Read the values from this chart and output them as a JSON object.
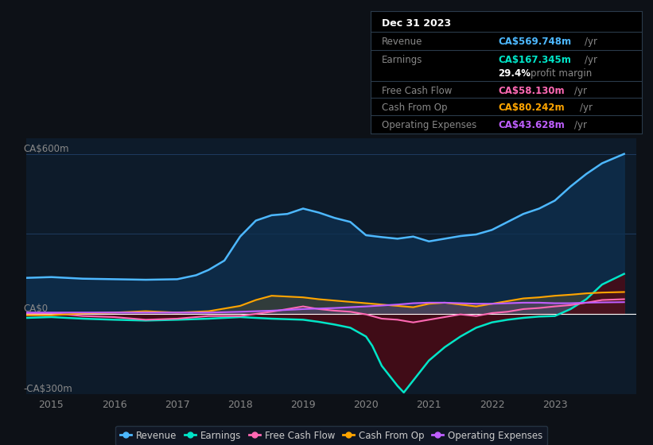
{
  "bg_color": "#0d1117",
  "plot_bg_color": "#0d1b2a",
  "grid_color": "#1e3a5f",
  "title_box": {
    "date": "Dec 31 2023",
    "rows": [
      {
        "label": "Revenue",
        "value": "CA$569.748m",
        "value_color": "#4db8ff",
        "suffix": " /yr"
      },
      {
        "label": "Earnings",
        "value": "CA$167.345m",
        "value_color": "#00e5c8",
        "suffix": " /yr"
      },
      {
        "label": "",
        "value": "29.4%",
        "value_color": "#ffffff",
        "suffix": " profit margin"
      },
      {
        "label": "Free Cash Flow",
        "value": "CA$58.130m",
        "value_color": "#ff69b4",
        "suffix": " /yr"
      },
      {
        "label": "Cash From Op",
        "value": "CA$80.242m",
        "value_color": "#ffa500",
        "suffix": " /yr"
      },
      {
        "label": "Operating Expenses",
        "value": "CA$43.628m",
        "value_color": "#bf5fff",
        "suffix": " /yr"
      }
    ]
  },
  "ylim": [
    -300,
    660
  ],
  "xlim": [
    2014.6,
    2024.3
  ],
  "xticks": [
    2015,
    2016,
    2017,
    2018,
    2019,
    2020,
    2021,
    2022,
    2023
  ],
  "revenue_color": "#4db8ff",
  "revenue_fill_color": "#0d3050",
  "earnings_color": "#00e5c8",
  "earnings_fill_color": "#4a0a14",
  "fcf_color": "#ff69b4",
  "cashfromop_color": "#ffa500",
  "opex_color": "#bf5fff",
  "revenue": {
    "x": [
      2014.6,
      2015.0,
      2015.5,
      2016.0,
      2016.5,
      2017.0,
      2017.3,
      2017.5,
      2017.75,
      2018.0,
      2018.25,
      2018.5,
      2018.75,
      2019.0,
      2019.25,
      2019.5,
      2019.75,
      2020.0,
      2020.25,
      2020.5,
      2020.75,
      2021.0,
      2021.25,
      2021.5,
      2021.75,
      2022.0,
      2022.25,
      2022.5,
      2022.75,
      2023.0,
      2023.25,
      2023.5,
      2023.75,
      2024.1
    ],
    "y": [
      135,
      138,
      132,
      130,
      128,
      130,
      145,
      165,
      200,
      290,
      350,
      370,
      375,
      395,
      380,
      360,
      345,
      295,
      288,
      282,
      290,
      272,
      282,
      292,
      298,
      315,
      345,
      375,
      395,
      425,
      478,
      525,
      565,
      600
    ]
  },
  "earnings": {
    "x": [
      2014.6,
      2015.0,
      2015.5,
      2016.0,
      2016.5,
      2017.0,
      2017.5,
      2017.75,
      2018.0,
      2018.5,
      2019.0,
      2019.25,
      2019.5,
      2019.75,
      2020.0,
      2020.1,
      2020.25,
      2020.5,
      2020.6,
      2020.75,
      2021.0,
      2021.25,
      2021.5,
      2021.75,
      2022.0,
      2022.25,
      2022.5,
      2022.75,
      2023.0,
      2023.25,
      2023.5,
      2023.75,
      2024.1
    ],
    "y": [
      -15,
      -12,
      -18,
      -22,
      -25,
      -22,
      -18,
      -15,
      -12,
      -18,
      -22,
      -30,
      -40,
      -52,
      -85,
      -120,
      -195,
      -270,
      -295,
      -250,
      -175,
      -125,
      -85,
      -52,
      -32,
      -22,
      -15,
      -10,
      -8,
      18,
      55,
      110,
      150
    ]
  },
  "fcf": {
    "x": [
      2014.6,
      2015.0,
      2015.5,
      2016.0,
      2016.5,
      2017.0,
      2017.5,
      2018.0,
      2018.5,
      2019.0,
      2019.25,
      2019.5,
      2019.75,
      2020.0,
      2020.25,
      2020.5,
      2020.75,
      2021.0,
      2021.25,
      2021.5,
      2021.75,
      2022.0,
      2022.25,
      2022.5,
      2022.75,
      2023.0,
      2023.25,
      2023.5,
      2023.75,
      2024.1
    ],
    "y": [
      2,
      3,
      -8,
      -12,
      -22,
      -18,
      -8,
      -8,
      8,
      28,
      18,
      12,
      8,
      -2,
      -18,
      -22,
      -32,
      -22,
      -12,
      -2,
      -8,
      3,
      8,
      18,
      22,
      28,
      33,
      42,
      52,
      55
    ]
  },
  "cashfromop": {
    "x": [
      2014.6,
      2015.0,
      2015.5,
      2016.0,
      2016.5,
      2017.0,
      2017.5,
      2018.0,
      2018.25,
      2018.5,
      2019.0,
      2019.25,
      2019.5,
      2019.75,
      2020.0,
      2020.25,
      2020.5,
      2020.75,
      2021.0,
      2021.25,
      2021.5,
      2021.75,
      2022.0,
      2022.25,
      2022.5,
      2022.75,
      2023.0,
      2023.25,
      2023.5,
      2023.75,
      2024.1
    ],
    "y": [
      -5,
      -5,
      2,
      5,
      10,
      5,
      10,
      30,
      52,
      68,
      62,
      55,
      50,
      45,
      40,
      35,
      30,
      25,
      38,
      42,
      35,
      28,
      38,
      48,
      58,
      62,
      68,
      72,
      77,
      80,
      82
    ]
  },
  "opex": {
    "x": [
      2014.6,
      2015.0,
      2015.5,
      2016.0,
      2016.5,
      2017.0,
      2017.5,
      2018.0,
      2018.5,
      2019.0,
      2019.5,
      2020.0,
      2020.5,
      2020.75,
      2021.0,
      2021.25,
      2021.5,
      2021.75,
      2022.0,
      2022.25,
      2022.5,
      2022.75,
      2023.0,
      2023.25,
      2023.5,
      2023.75,
      2024.1
    ],
    "y": [
      5,
      5,
      5,
      5,
      5,
      5,
      5,
      8,
      12,
      18,
      22,
      28,
      35,
      40,
      42,
      42,
      40,
      38,
      38,
      40,
      42,
      42,
      40,
      40,
      42,
      43,
      44
    ]
  },
  "legend": [
    {
      "label": "Revenue",
      "color": "#4db8ff"
    },
    {
      "label": "Earnings",
      "color": "#00e5c8"
    },
    {
      "label": "Free Cash Flow",
      "color": "#ff69b4"
    },
    {
      "label": "Cash From Op",
      "color": "#ffa500"
    },
    {
      "label": "Operating Expenses",
      "color": "#bf5fff"
    }
  ]
}
